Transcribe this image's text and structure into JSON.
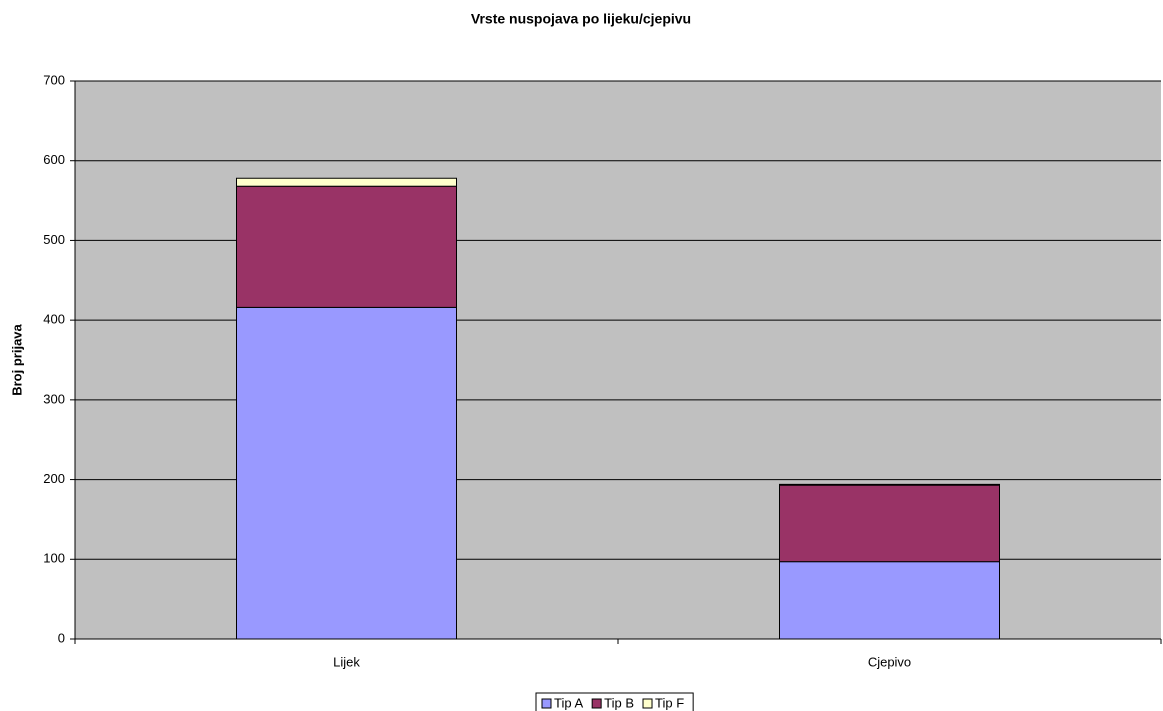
{
  "chart_data": {
    "type": "stacked_bar",
    "title": "Vrste nuspojava po lijeku/cjepivu",
    "y_label": "Broj prijava",
    "categories": [
      "Lijek",
      "Cjepivo"
    ],
    "series": [
      {
        "name": "Tip A",
        "color": "#9999ff",
        "values": [
          416,
          97
        ]
      },
      {
        "name": "Tip B",
        "color": "#993366",
        "values": [
          152,
          96
        ]
      },
      {
        "name": "Tip F",
        "color": "#ffffcc",
        "values": [
          10,
          1
        ]
      }
    ],
    "ylim": [
      0,
      700
    ],
    "yticks": [
      0,
      100,
      200,
      300,
      400,
      500,
      600,
      700
    ],
    "grid": true,
    "legend": "bottom"
  }
}
